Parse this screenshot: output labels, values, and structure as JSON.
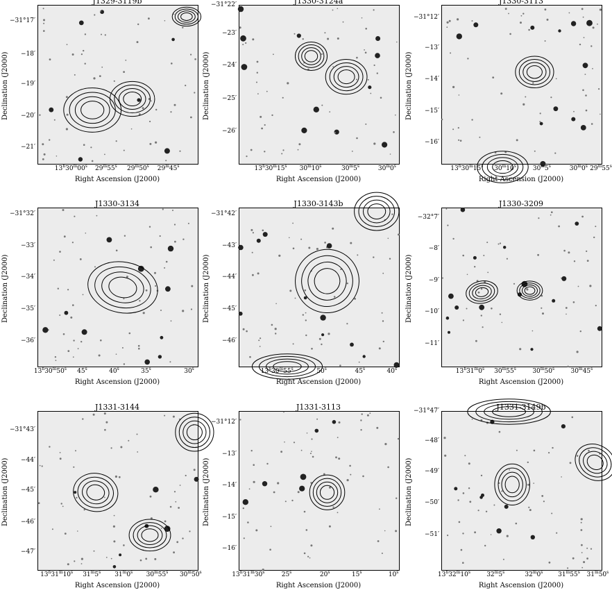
{
  "figure": {
    "xlabel": "Right Ascension (J2000)",
    "ylabel": "Declination (J2000)",
    "panels": [
      {
        "name": "J1329-3119b",
        "y_ticks": [
          "−31°17′",
          "−18′",
          "−19′",
          "−20′",
          "−21′"
        ],
        "x_ticks": [
          "13h30m00s",
          "29m55s",
          "29m50s",
          "29m45s"
        ]
      },
      {
        "name": "J1330-3124a",
        "y_ticks": [
          "−31°22′",
          "−23′",
          "−24′",
          "−25′",
          "−26′"
        ],
        "x_ticks": [
          "13h30m15s",
          "30m10s",
          "30m5s",
          "30m0s"
        ]
      },
      {
        "name": "J1330-3113",
        "y_ticks": [
          "−31°12′",
          "−13′",
          "−14′",
          "−15′",
          "−16′"
        ],
        "x_ticks": [
          "13h30m15s",
          "30m10s",
          "30m5s",
          "30m0s",
          "29m55s"
        ]
      },
      {
        "name": "J1330-3134",
        "y_ticks": [
          "−31°32′",
          "−33′",
          "−34′",
          "−35′",
          "−36′"
        ],
        "x_ticks": [
          "13h30m50s",
          "45s",
          "40s",
          "35s",
          "30s"
        ]
      },
      {
        "name": "J1330-3143b",
        "y_ticks": [
          "−31°42′",
          "−43′",
          "−44′",
          "−45′",
          "−46′"
        ],
        "x_ticks": [
          "13h30m55s",
          "50s",
          "45s",
          "40s"
        ]
      },
      {
        "name": "J1330-3209",
        "y_ticks": [
          "−32°7′",
          "−8′",
          "−9′",
          "−10′",
          "−11′"
        ],
        "x_ticks": [
          "13h31m0s",
          "30m55s",
          "30m50s",
          "30m45s"
        ]
      },
      {
        "name": "J1331-3144",
        "y_ticks": [
          "−31°43′",
          "−44′",
          "−45′",
          "−46′",
          "−47′"
        ],
        "x_ticks": [
          "13h31m10s",
          "31m5s",
          "31m0s",
          "30m55s",
          "30m50s"
        ]
      },
      {
        "name": "J1331-3113",
        "y_ticks": [
          "−31°12′",
          "−13′",
          "−14′",
          "−15′",
          "−16′"
        ],
        "x_ticks": [
          "13h31m30s",
          "25s",
          "20s",
          "15s",
          "10s"
        ]
      },
      {
        "name": "J1331-3149b",
        "y_ticks": [
          "−31°47′",
          "−48′",
          "−49′",
          "−50′",
          "−51′"
        ],
        "x_ticks": [
          "13h32m10s",
          "32m5s",
          "32m0s",
          "31m55s",
          "31m50s"
        ]
      }
    ]
  }
}
